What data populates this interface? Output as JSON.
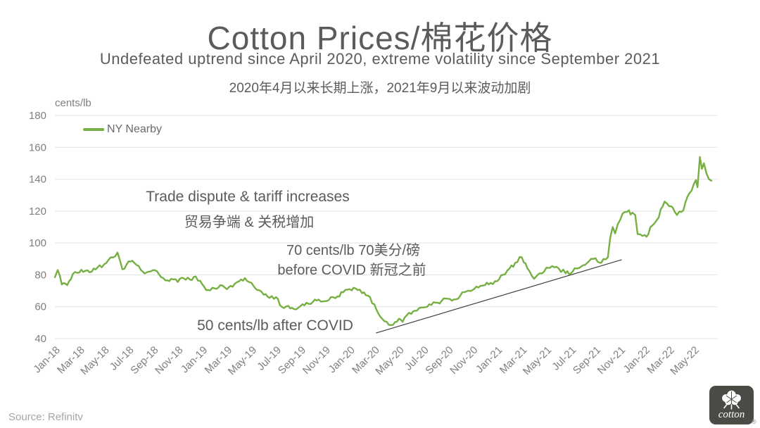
{
  "title": "Cotton Prices/棉花价格",
  "subtitle_en": "Undefeated uptrend since April 2020, extreme volatility since September 2021",
  "subtitle_cn": "2020年4月以来长期上涨，2021年9月以来波动加剧",
  "source": "Source: Refinitv",
  "logo": {
    "wordmark": "cotton",
    "registered": "®"
  },
  "chart_data": {
    "type": "line",
    "title": "Cotton Prices/棉花价格",
    "xlabel": "",
    "ylabel": "cents/lb",
    "unit_label": "cents/lb",
    "grid": "horizontal",
    "legend_position": "top-left-inside",
    "ylim": [
      40,
      180
    ],
    "y_ticks": [
      180,
      160,
      140,
      120,
      100,
      80,
      60,
      40
    ],
    "x_tick_labels": [
      "Jan-18",
      "Mar-18",
      "May-18",
      "Jul-18",
      "Sep-18",
      "Nov-18",
      "Jan-19",
      "Mar-19",
      "May-19",
      "Jul-19",
      "Sep-19",
      "Nov-19",
      "Jan-20",
      "Mar-20",
      "May-20",
      "Jul-20",
      "Sep-20",
      "Nov-20",
      "Jan-21",
      "Mar-21",
      "May-21",
      "Jul-21",
      "Sep-21",
      "Nov-21",
      "Jan-22",
      "Mar-22",
      "May-22"
    ],
    "legend": [
      {
        "name": "NY Nearby",
        "color": "#76b043"
      }
    ],
    "series": [
      {
        "name": "NY Nearby",
        "color": "#76b043",
        "points": [
          [
            "2018-01-01",
            78.5
          ],
          [
            "2018-01-08",
            83
          ],
          [
            "2018-01-18",
            74
          ],
          [
            "2018-02-01",
            73.5
          ],
          [
            "2018-02-15",
            80.5
          ],
          [
            "2018-03-01",
            81.5
          ],
          [
            "2018-03-15",
            82.5
          ],
          [
            "2018-04-01",
            82
          ],
          [
            "2018-04-15",
            84.5
          ],
          [
            "2018-05-01",
            86.5
          ],
          [
            "2018-05-18",
            91
          ],
          [
            "2018-06-04",
            94
          ],
          [
            "2018-06-16",
            83.5
          ],
          [
            "2018-07-01",
            88.5
          ],
          [
            "2018-07-15",
            87.5
          ],
          [
            "2018-08-01",
            83
          ],
          [
            "2018-08-15",
            81.5
          ],
          [
            "2018-09-01",
            83
          ],
          [
            "2018-09-15",
            80.5
          ],
          [
            "2018-10-01",
            76.5
          ],
          [
            "2018-10-15",
            77.5
          ],
          [
            "2018-11-01",
            75.5
          ],
          [
            "2018-11-15",
            78
          ],
          [
            "2018-12-01",
            77
          ],
          [
            "2018-12-15",
            79
          ],
          [
            "2019-01-01",
            74
          ],
          [
            "2019-01-15",
            70.5
          ],
          [
            "2019-02-01",
            71.5
          ],
          [
            "2019-02-15",
            73.5
          ],
          [
            "2019-03-01",
            71
          ],
          [
            "2019-03-15",
            72.5
          ],
          [
            "2019-04-01",
            76
          ],
          [
            "2019-04-15",
            78
          ],
          [
            "2019-05-01",
            75
          ],
          [
            "2019-05-15",
            70.5
          ],
          [
            "2019-06-01",
            67.5
          ],
          [
            "2019-06-15",
            65.5
          ],
          [
            "2019-07-01",
            66
          ],
          [
            "2019-07-15",
            60
          ],
          [
            "2019-08-01",
            60.5
          ],
          [
            "2019-08-15",
            58.5
          ],
          [
            "2019-09-01",
            60.5
          ],
          [
            "2019-09-15",
            62.5
          ],
          [
            "2019-10-01",
            63
          ],
          [
            "2019-10-15",
            64.5
          ],
          [
            "2019-11-01",
            63.5
          ],
          [
            "2019-11-15",
            66
          ],
          [
            "2019-12-01",
            66.5
          ],
          [
            "2019-12-15",
            69
          ],
          [
            "2020-01-01",
            71
          ],
          [
            "2020-01-15",
            71.5
          ],
          [
            "2020-02-01",
            68.5
          ],
          [
            "2020-02-15",
            67
          ],
          [
            "2020-03-01",
            61.5
          ],
          [
            "2020-03-15",
            54
          ],
          [
            "2020-04-01",
            50.5
          ],
          [
            "2020-04-12",
            48.5
          ],
          [
            "2020-05-01",
            52.5
          ],
          [
            "2020-05-10",
            50.5
          ],
          [
            "2020-05-20",
            54.5
          ],
          [
            "2020-06-01",
            55.5
          ],
          [
            "2020-06-15",
            57.5
          ],
          [
            "2020-07-01",
            59.5
          ],
          [
            "2020-07-15",
            61.5
          ],
          [
            "2020-08-01",
            62.5
          ],
          [
            "2020-08-15",
            63.5
          ],
          [
            "2020-09-01",
            65
          ],
          [
            "2020-09-15",
            64.5
          ],
          [
            "2020-10-01",
            67
          ],
          [
            "2020-10-15",
            69.5
          ],
          [
            "2020-11-01",
            70.5
          ],
          [
            "2020-11-15",
            72
          ],
          [
            "2020-12-01",
            73.5
          ],
          [
            "2020-12-15",
            75
          ],
          [
            "2021-01-01",
            76
          ],
          [
            "2021-01-15",
            80
          ],
          [
            "2021-02-01",
            84
          ],
          [
            "2021-02-15",
            87.5
          ],
          [
            "2021-03-01",
            91
          ],
          [
            "2021-03-15",
            84
          ],
          [
            "2021-04-01",
            77.5
          ],
          [
            "2021-04-15",
            81
          ],
          [
            "2021-05-01",
            84.5
          ],
          [
            "2021-05-15",
            85.5
          ],
          [
            "2021-06-01",
            84
          ],
          [
            "2021-06-18",
            81
          ],
          [
            "2021-07-01",
            81
          ],
          [
            "2021-07-15",
            84
          ],
          [
            "2021-08-01",
            86
          ],
          [
            "2021-08-15",
            88.5
          ],
          [
            "2021-09-01",
            90.5
          ],
          [
            "2021-09-15",
            87.5
          ],
          [
            "2021-10-01",
            91
          ],
          [
            "2021-10-07",
            103.5
          ],
          [
            "2021-10-13",
            110
          ],
          [
            "2021-10-19",
            106
          ],
          [
            "2021-10-26",
            112
          ],
          [
            "2021-11-07",
            118.5
          ],
          [
            "2021-11-18",
            119.5
          ],
          [
            "2021-12-01",
            119
          ],
          [
            "2021-12-08",
            117.5
          ],
          [
            "2021-12-14",
            105.5
          ],
          [
            "2022-01-01",
            105
          ],
          [
            "2022-01-10",
            105.5
          ],
          [
            "2022-01-20",
            111
          ],
          [
            "2022-02-01",
            114.5
          ],
          [
            "2022-02-10",
            121
          ],
          [
            "2022-02-20",
            126
          ],
          [
            "2022-03-01",
            123
          ],
          [
            "2022-03-10",
            122
          ],
          [
            "2022-03-20",
            117.5
          ],
          [
            "2022-04-01",
            119.5
          ],
          [
            "2022-04-10",
            125
          ],
          [
            "2022-04-20",
            131
          ],
          [
            "2022-05-01",
            137
          ],
          [
            "2022-05-06",
            139.5
          ],
          [
            "2022-05-10",
            135
          ],
          [
            "2022-05-16",
            154
          ],
          [
            "2022-05-21",
            146.5
          ],
          [
            "2022-05-26",
            150
          ],
          [
            "2022-06-02",
            143.5
          ],
          [
            "2022-06-08",
            140
          ],
          [
            "2022-06-14",
            139
          ]
        ]
      }
    ],
    "trendline": {
      "color": "#3f3f3f",
      "from": [
        "2020-03-05",
        43.5
      ],
      "to": [
        "2021-11-05",
        89.5
      ]
    },
    "annotations": {
      "trade_en": "Trade dispute & tariff increases",
      "trade_cn": "贸易争端 & 关税增加",
      "seventy_line1": "70 cents/lb 70美分/磅",
      "seventy_line2": "before COVID 新冠之前",
      "fifty": "50 cents/lb after COVID"
    },
    "colors": {
      "axis_text": "#7f7f7f",
      "grid": "#e2e2e2",
      "annotation_text": "#5b5b5b"
    }
  }
}
